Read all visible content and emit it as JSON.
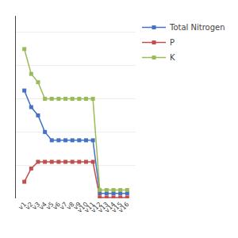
{
  "chart_data": {
    "type": "line",
    "categories": [
      "v1",
      "v2",
      "v3",
      "v4",
      "v5",
      "v6",
      "v7",
      "v8",
      "v9",
      "v10",
      "v11",
      "v12",
      "v13",
      "v14",
      "v15",
      "v16"
    ],
    "series": [
      {
        "name": "Total Nitrogen",
        "color": "#4472C4",
        "marker": "square",
        "values": [
          6.5,
          5.5,
          5.0,
          4.0,
          3.5,
          3.5,
          3.5,
          3.5,
          3.5,
          3.5,
          3.5,
          0.3,
          0.3,
          0.3,
          0.3,
          0.3
        ]
      },
      {
        "name": "P",
        "color": "#C0504D",
        "marker": "square",
        "values": [
          1.0,
          1.8,
          2.2,
          2.2,
          2.2,
          2.2,
          2.2,
          2.2,
          2.2,
          2.2,
          2.2,
          0.05,
          0.05,
          0.05,
          0.05,
          0.05
        ]
      },
      {
        "name": "K",
        "color": "#9BBB59",
        "marker": "square",
        "values": [
          9.0,
          7.5,
          7.0,
          6.0,
          6.0,
          6.0,
          6.0,
          6.0,
          6.0,
          6.0,
          6.0,
          0.5,
          0.5,
          0.5,
          0.5,
          0.5
        ]
      }
    ],
    "ylim": [
      0,
      11
    ],
    "yticks": [
      0,
      2,
      4,
      6,
      8,
      10
    ],
    "grid": true,
    "legend": "right",
    "tick_labels": "x"
  }
}
